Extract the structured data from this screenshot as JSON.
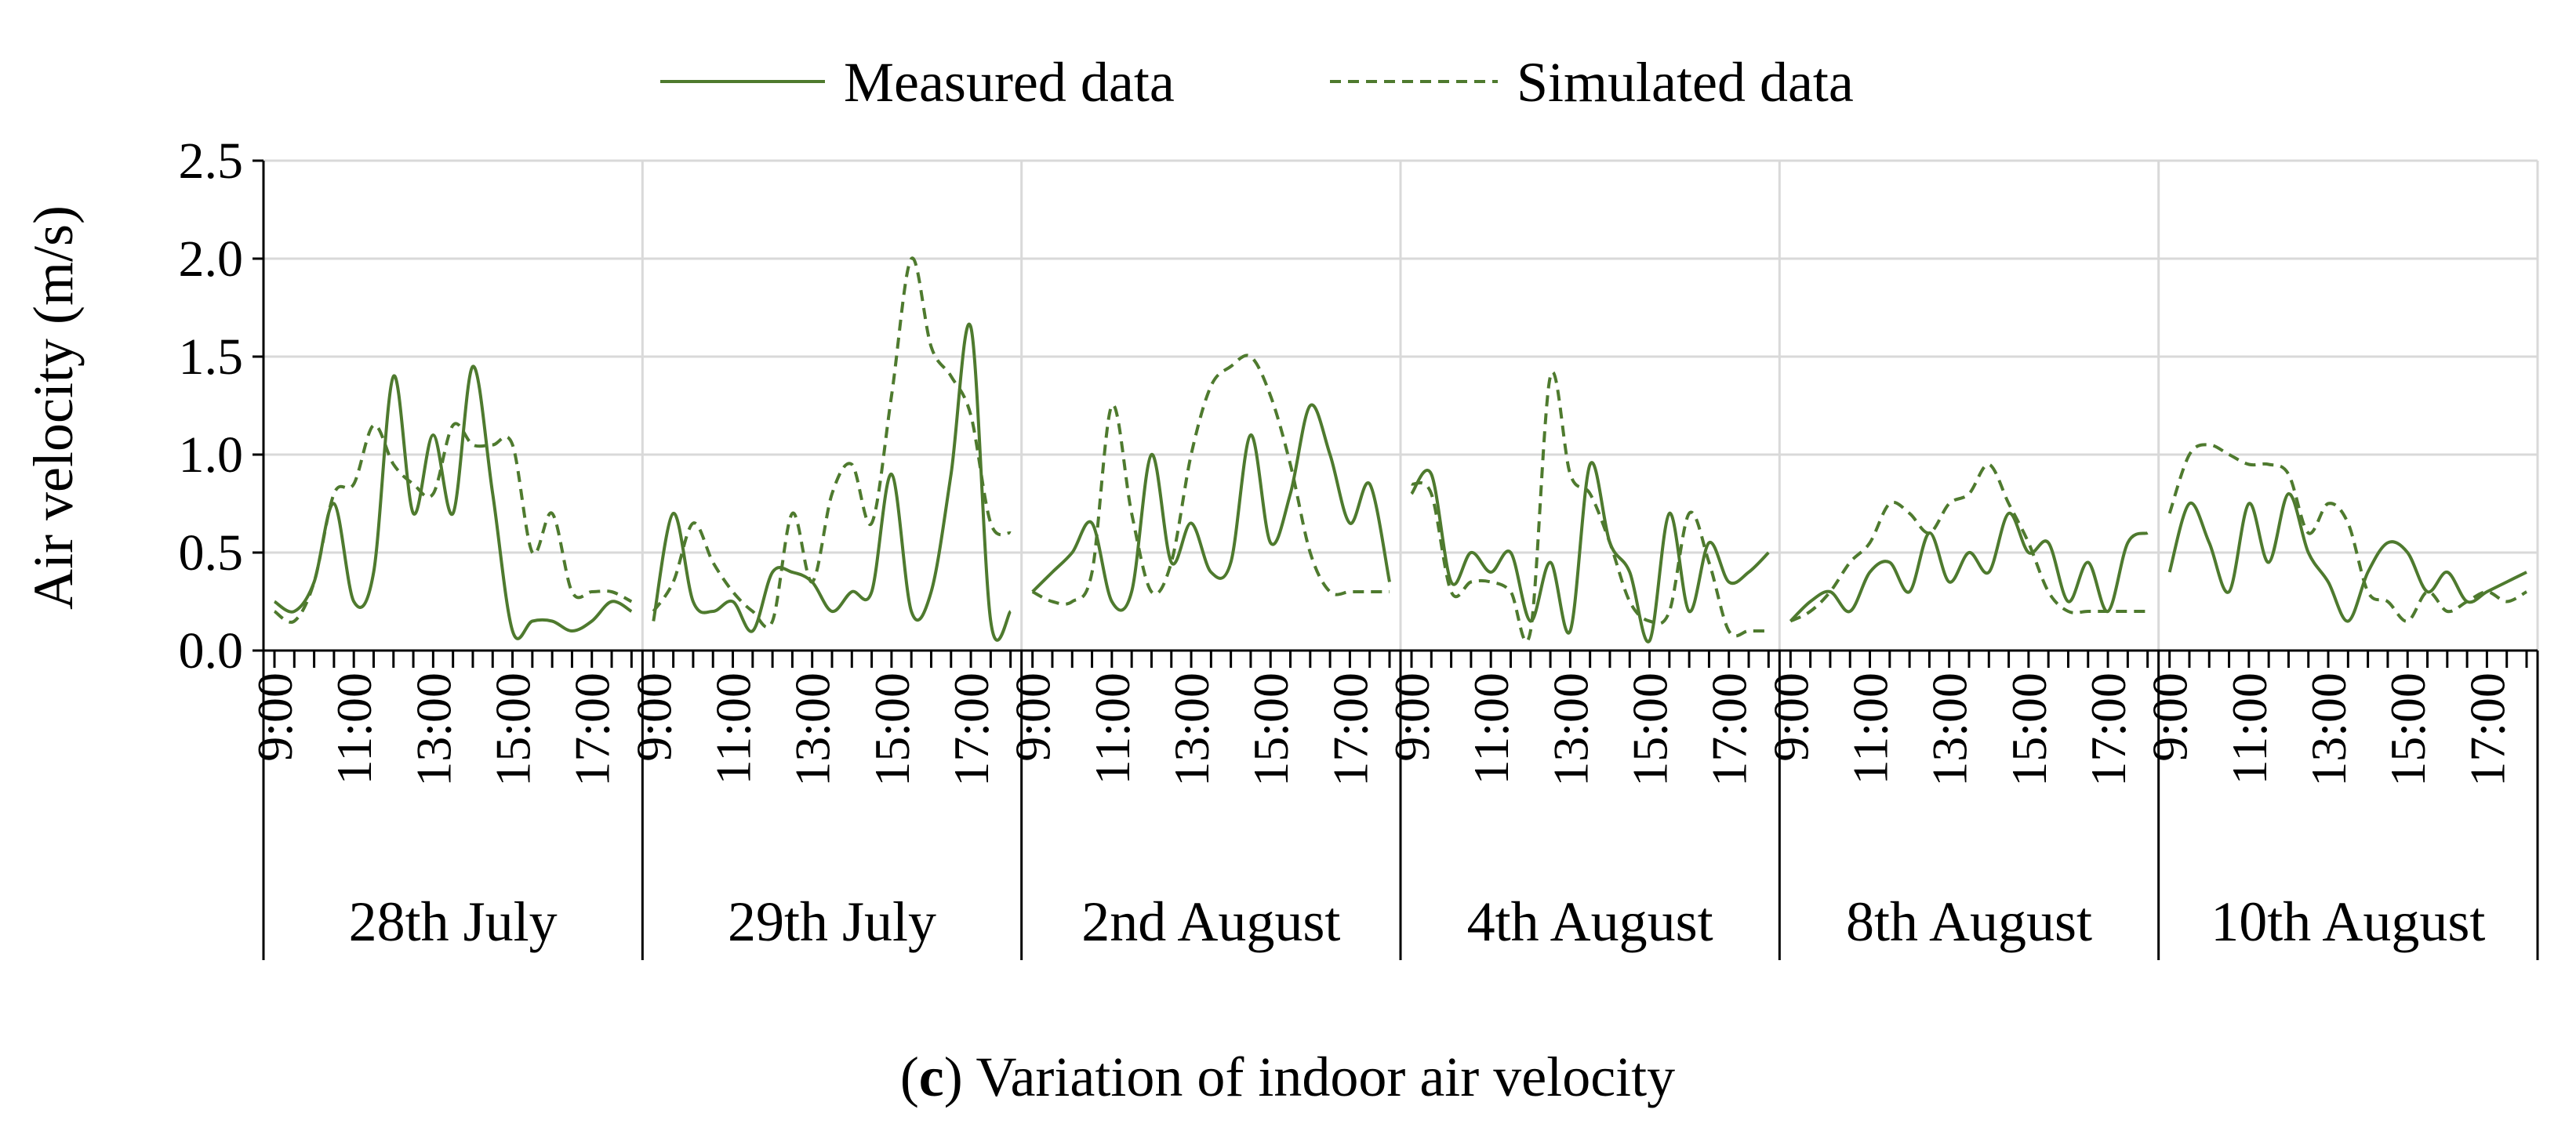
{
  "chart_data": {
    "type": "line",
    "title": "",
    "caption": {
      "prefix": "(",
      "letter": "c",
      "text": ") Variation of indoor air velocity"
    },
    "xlabel": "",
    "ylabel": "Air velocity (m/s)",
    "ylim": [
      0,
      2.5
    ],
    "yticks": [
      0.0,
      0.5,
      1.0,
      1.5,
      2.0,
      2.5
    ],
    "ytick_labels": [
      "0.0",
      "0.5",
      "1.0",
      "1.5",
      "2.0",
      "2.5"
    ],
    "grid": true,
    "legend_position": "top-center",
    "time_tick_labels": [
      "9:00",
      "11:00",
      "13:00",
      "15:00",
      "17:00"
    ],
    "hour_range": [
      9,
      18
    ],
    "days": [
      "28th July",
      "29th July",
      "2nd August",
      "4th August",
      "8th August",
      "10th August"
    ],
    "series": [
      {
        "name": "Measured data",
        "style": "solid",
        "color": "#4e7a2e",
        "days": [
          {
            "hours": [
              9,
              9.5,
              10,
              10.5,
              11,
              11.5,
              12,
              12.5,
              13,
              13.5,
              14,
              14.5,
              15,
              15.5,
              16,
              16.5,
              17,
              17.5,
              18
            ],
            "values": [
              0.25,
              0.2,
              0.35,
              0.75,
              0.25,
              0.4,
              1.4,
              0.7,
              1.1,
              0.7,
              1.45,
              0.8,
              0.1,
              0.15,
              0.15,
              0.1,
              0.15,
              0.25,
              0.2
            ]
          },
          {
            "hours": [
              9,
              9.5,
              10,
              10.5,
              11,
              11.5,
              12,
              12.5,
              13,
              13.5,
              14,
              14.5,
              15,
              15.5,
              16,
              16.5,
              17,
              17.5,
              18
            ],
            "values": [
              0.15,
              0.7,
              0.25,
              0.2,
              0.25,
              0.1,
              0.4,
              0.4,
              0.35,
              0.2,
              0.3,
              0.3,
              0.9,
              0.2,
              0.3,
              0.9,
              1.65,
              0.15,
              0.2
            ]
          },
          {
            "hours": [
              9,
              9.5,
              10,
              10.5,
              11,
              11.5,
              12,
              12.5,
              13,
              13.5,
              14,
              14.5,
              15,
              15.5,
              16,
              16.5,
              17,
              17.5,
              18
            ],
            "values": [
              0.3,
              0.4,
              0.5,
              0.65,
              0.25,
              0.3,
              1.0,
              0.45,
              0.65,
              0.4,
              0.45,
              1.1,
              0.55,
              0.8,
              1.25,
              1.0,
              0.65,
              0.85,
              0.35
            ]
          },
          {
            "hours": [
              9,
              9.5,
              10,
              10.5,
              11,
              11.5,
              12,
              12.5,
              13,
              13.5,
              14,
              14.5,
              15,
              15.5,
              16,
              16.5,
              17,
              17.5,
              18
            ],
            "values": [
              0.8,
              0.9,
              0.35,
              0.5,
              0.4,
              0.5,
              0.15,
              0.45,
              0.1,
              0.95,
              0.55,
              0.4,
              0.05,
              0.7,
              0.2,
              0.55,
              0.35,
              0.4,
              0.5
            ]
          },
          {
            "hours": [
              9,
              9.5,
              10,
              10.5,
              11,
              11.5,
              12,
              12.5,
              13,
              13.5,
              14,
              14.5,
              15,
              15.5,
              16,
              16.5,
              17,
              17.5,
              18
            ],
            "values": [
              0.15,
              0.25,
              0.3,
              0.2,
              0.4,
              0.45,
              0.3,
              0.6,
              0.35,
              0.5,
              0.4,
              0.7,
              0.5,
              0.55,
              0.25,
              0.45,
              0.2,
              0.55,
              0.6
            ]
          },
          {
            "hours": [
              9,
              9.5,
              10,
              10.5,
              11,
              11.5,
              12,
              12.5,
              13,
              13.5,
              14,
              14.5,
              15,
              15.5,
              16,
              16.5,
              17,
              17.5,
              18
            ],
            "values": [
              0.4,
              0.75,
              0.55,
              0.3,
              0.75,
              0.45,
              0.8,
              0.5,
              0.35,
              0.15,
              0.4,
              0.55,
              0.5,
              0.3,
              0.4,
              0.25,
              0.3,
              0.35,
              0.4
            ]
          }
        ]
      },
      {
        "name": "Simulated data",
        "style": "dashed",
        "color": "#4e7a2e",
        "days": [
          {
            "hours": [
              9,
              9.5,
              10,
              10.5,
              11,
              11.5,
              12,
              12.5,
              13,
              13.5,
              14,
              14.5,
              15,
              15.5,
              16,
              16.5,
              17,
              17.5,
              18
            ],
            "values": [
              0.2,
              0.15,
              0.35,
              0.8,
              0.85,
              1.15,
              0.95,
              0.85,
              0.8,
              1.15,
              1.05,
              1.05,
              1.05,
              0.5,
              0.7,
              0.3,
              0.3,
              0.3,
              0.25
            ]
          },
          {
            "hours": [
              9,
              9.5,
              10,
              10.5,
              11,
              11.5,
              12,
              12.5,
              13,
              13.5,
              14,
              14.5,
              15,
              15.5,
              16,
              16.5,
              17,
              17.5,
              18
            ],
            "values": [
              0.2,
              0.35,
              0.65,
              0.45,
              0.3,
              0.2,
              0.15,
              0.7,
              0.35,
              0.8,
              0.95,
              0.65,
              1.3,
              2.0,
              1.55,
              1.4,
              1.2,
              0.65,
              0.6
            ]
          },
          {
            "hours": [
              9,
              9.5,
              10,
              10.5,
              11,
              11.5,
              12,
              12.5,
              13,
              13.5,
              14,
              14.5,
              15,
              15.5,
              16,
              16.5,
              17,
              17.5,
              18
            ],
            "values": [
              0.3,
              0.25,
              0.25,
              0.4,
              1.25,
              0.7,
              0.3,
              0.45,
              1.0,
              1.35,
              1.45,
              1.5,
              1.3,
              0.95,
              0.5,
              0.3,
              0.3,
              0.3,
              0.3
            ]
          },
          {
            "hours": [
              9,
              9.5,
              10,
              10.5,
              11,
              11.5,
              12,
              12.5,
              13,
              13.5,
              14,
              14.5,
              15,
              15.5,
              16,
              16.5,
              17,
              17.5,
              18
            ],
            "values": [
              0.85,
              0.8,
              0.3,
              0.35,
              0.35,
              0.3,
              0.1,
              1.4,
              0.9,
              0.8,
              0.55,
              0.25,
              0.15,
              0.2,
              0.7,
              0.45,
              0.1,
              0.1,
              0.1
            ]
          },
          {
            "hours": [
              9,
              9.5,
              10,
              10.5,
              11,
              11.5,
              12,
              12.5,
              13,
              13.5,
              14,
              14.5,
              15,
              15.5,
              16,
              16.5,
              17,
              17.5,
              18
            ],
            "values": [
              0.15,
              0.2,
              0.3,
              0.45,
              0.55,
              0.75,
              0.7,
              0.6,
              0.75,
              0.8,
              0.95,
              0.75,
              0.55,
              0.3,
              0.2,
              0.2,
              0.2,
              0.2,
              0.2
            ]
          },
          {
            "hours": [
              9,
              9.5,
              10,
              10.5,
              11,
              11.5,
              12,
              12.5,
              13,
              13.5,
              14,
              14.5,
              15,
              15.5,
              16,
              16.5,
              17,
              17.5,
              18
            ],
            "values": [
              0.7,
              1.0,
              1.05,
              1.0,
              0.95,
              0.95,
              0.9,
              0.6,
              0.75,
              0.65,
              0.3,
              0.25,
              0.15,
              0.3,
              0.2,
              0.25,
              0.3,
              0.25,
              0.3
            ]
          }
        ]
      }
    ]
  }
}
